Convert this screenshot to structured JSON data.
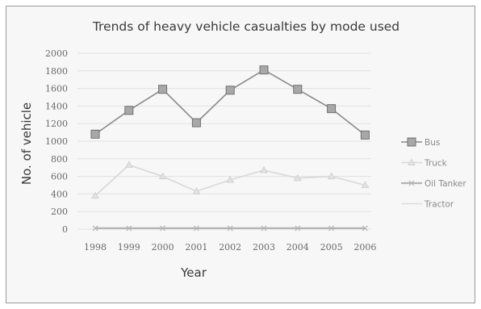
{
  "chart_data": {
    "type": "line",
    "title": "Trends of heavy vehicle casualties by mode used",
    "xlabel": "Year",
    "ylabel": "No. of vehicle",
    "ylim": [
      0,
      2000
    ],
    "yticks": [
      0,
      200,
      400,
      600,
      800,
      1000,
      1200,
      1400,
      1600,
      1800,
      2000
    ],
    "grid": true,
    "legend_position": "right",
    "categories": [
      "1998",
      "1999",
      "2000",
      "2001",
      "2002",
      "2003",
      "2004",
      "2005",
      "2006"
    ],
    "series": [
      {
        "name": "Bus",
        "color": "#8a8a8a",
        "marker": "square",
        "values": [
          1080,
          1350,
          1590,
          1210,
          1580,
          1810,
          1590,
          1370,
          1070
        ]
      },
      {
        "name": "Truck",
        "color": "#d8d8d8",
        "marker": "triangle",
        "values": [
          380,
          730,
          600,
          430,
          560,
          670,
          580,
          600,
          500
        ]
      },
      {
        "name": "Oil Tanker",
        "color": "#b4b4b4",
        "marker": "cross",
        "values": [
          10,
          10,
          10,
          10,
          10,
          10,
          10,
          10,
          10
        ]
      },
      {
        "name": "Tractor",
        "color": "#dcdcdc",
        "marker": "none",
        "values": [
          5,
          5,
          5,
          5,
          5,
          5,
          5,
          5,
          5
        ]
      }
    ]
  }
}
